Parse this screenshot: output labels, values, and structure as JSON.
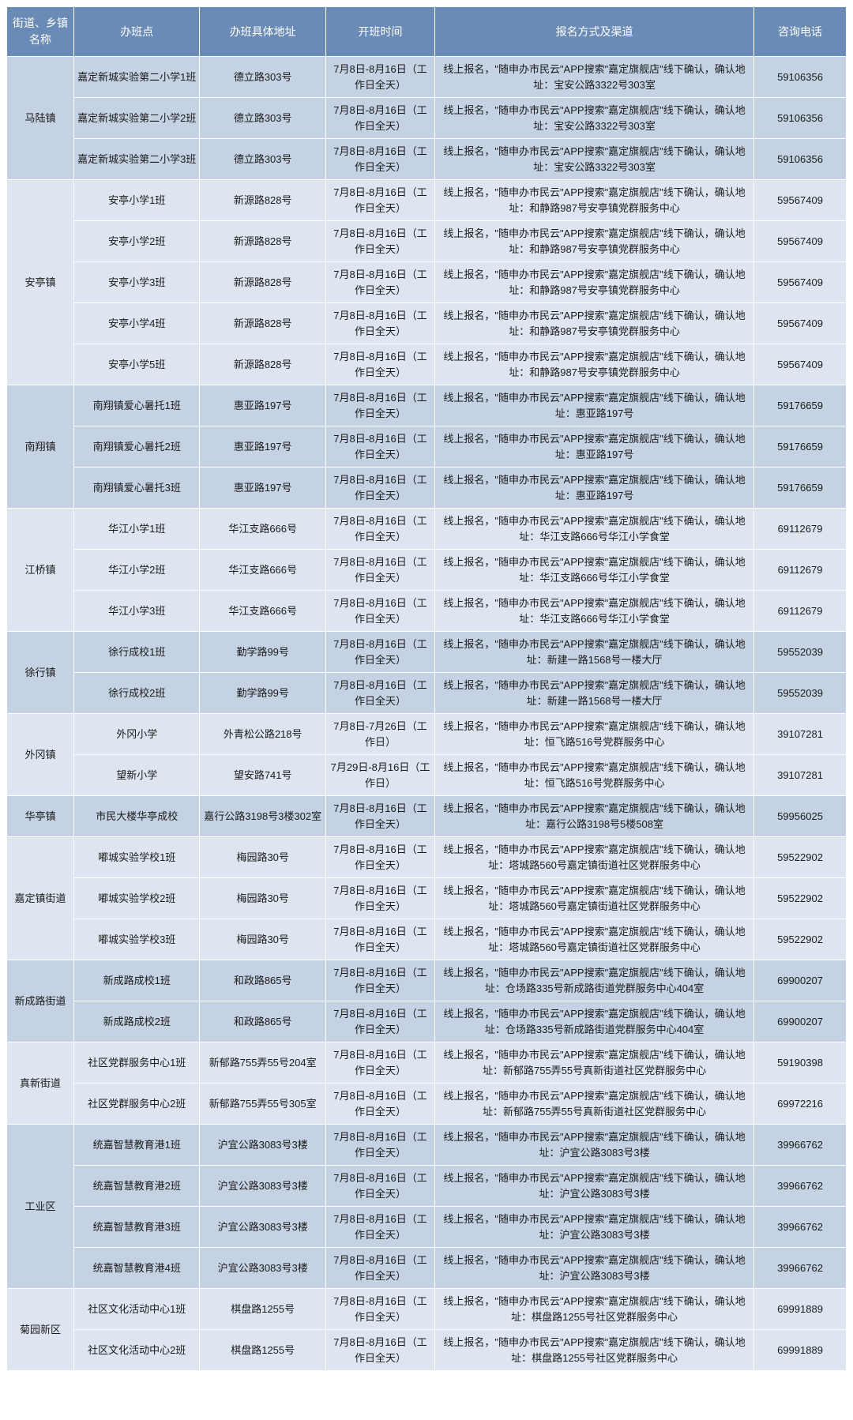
{
  "columns": [
    "街道、乡镇名称",
    "办班点",
    "办班具体地址",
    "开班时间",
    "报名方式及渠道",
    "咨询电话"
  ],
  "col_widths_pct": [
    8,
    15,
    15,
    13,
    38,
    11
  ],
  "header_bg": "#6a8bb5",
  "header_fg": "#ffffff",
  "band_a_bg": "#c4d2e3",
  "band_b_bg": "#dde6f0",
  "border_color": "#ffffff",
  "font_size_cell": 13,
  "font_size_header": 14,
  "groups": [
    {
      "town": "马陆镇",
      "band": "a",
      "rows": [
        {
          "site": "嘉定新城实验第二小学1班",
          "addr": "德立路303号",
          "time": "7月8日-8月16日（工作日全天）",
          "method": "线上报名，\"随申办市民云\"APP搜索\"嘉定旗舰店\"线下确认，确认地址：宝安公路3322号303室",
          "phone": "59106356"
        },
        {
          "site": "嘉定新城实验第二小学2班",
          "addr": "德立路303号",
          "time": "7月8日-8月16日（工作日全天）",
          "method": "线上报名，\"随申办市民云\"APP搜索\"嘉定旗舰店\"线下确认，确认地址：宝安公路3322号303室",
          "phone": "59106356"
        },
        {
          "site": "嘉定新城实验第二小学3班",
          "addr": "德立路303号",
          "time": "7月8日-8月16日（工作日全天）",
          "method": "线上报名，\"随申办市民云\"APP搜索\"嘉定旗舰店\"线下确认，确认地址：宝安公路3322号303室",
          "phone": "59106356"
        }
      ]
    },
    {
      "town": "安亭镇",
      "band": "b",
      "rows": [
        {
          "site": "安亭小学1班",
          "addr": "新源路828号",
          "time": "7月8日-8月16日（工作日全天）",
          "method": "线上报名，\"随申办市民云\"APP搜索\"嘉定旗舰店\"线下确认，确认地址：和静路987号安亭镇党群服务中心",
          "phone": "59567409"
        },
        {
          "site": "安亭小学2班",
          "addr": "新源路828号",
          "time": "7月8日-8月16日（工作日全天）",
          "method": "线上报名，\"随申办市民云\"APP搜索\"嘉定旗舰店\"线下确认，确认地址：和静路987号安亭镇党群服务中心",
          "phone": "59567409"
        },
        {
          "site": "安亭小学3班",
          "addr": "新源路828号",
          "time": "7月8日-8月16日（工作日全天）",
          "method": "线上报名，\"随申办市民云\"APP搜索\"嘉定旗舰店\"线下确认，确认地址：和静路987号安亭镇党群服务中心",
          "phone": "59567409"
        },
        {
          "site": "安亭小学4班",
          "addr": "新源路828号",
          "time": "7月8日-8月16日（工作日全天）",
          "method": "线上报名，\"随申办市民云\"APP搜索\"嘉定旗舰店\"线下确认，确认地址：和静路987号安亭镇党群服务中心",
          "phone": "59567409"
        },
        {
          "site": "安亭小学5班",
          "addr": "新源路828号",
          "time": "7月8日-8月16日（工作日全天）",
          "method": "线上报名，\"随申办市民云\"APP搜索\"嘉定旗舰店\"线下确认，确认地址：和静路987号安亭镇党群服务中心",
          "phone": "59567409"
        }
      ]
    },
    {
      "town": "南翔镇",
      "band": "a",
      "rows": [
        {
          "site": "南翔镇爱心暑托1班",
          "addr": "惠亚路197号",
          "time": "7月8日-8月16日（工作日全天）",
          "method": "线上报名，\"随申办市民云\"APP搜索\"嘉定旗舰店\"线下确认，确认地址：惠亚路197号",
          "phone": "59176659"
        },
        {
          "site": "南翔镇爱心暑托2班",
          "addr": "惠亚路197号",
          "time": "7月8日-8月16日（工作日全天）",
          "method": "线上报名，\"随申办市民云\"APP搜索\"嘉定旗舰店\"线下确认，确认地址：惠亚路197号",
          "phone": "59176659"
        },
        {
          "site": "南翔镇爱心暑托3班",
          "addr": "惠亚路197号",
          "time": "7月8日-8月16日（工作日全天）",
          "method": "线上报名，\"随申办市民云\"APP搜索\"嘉定旗舰店\"线下确认，确认地址：惠亚路197号",
          "phone": "59176659"
        }
      ]
    },
    {
      "town": "江桥镇",
      "band": "b",
      "rows": [
        {
          "site": "华江小学1班",
          "addr": "华江支路666号",
          "time": "7月8日-8月16日（工作日全天）",
          "method": "线上报名，\"随申办市民云\"APP搜索\"嘉定旗舰店\"线下确认，确认地址：华江支路666号华江小学食堂",
          "phone": "69112679"
        },
        {
          "site": "华江小学2班",
          "addr": "华江支路666号",
          "time": "7月8日-8月16日（工作日全天）",
          "method": "线上报名，\"随申办市民云\"APP搜索\"嘉定旗舰店\"线下确认，确认地址：华江支路666号华江小学食堂",
          "phone": "69112679"
        },
        {
          "site": "华江小学3班",
          "addr": "华江支路666号",
          "time": "7月8日-8月16日（工作日全天）",
          "method": "线上报名，\"随申办市民云\"APP搜索\"嘉定旗舰店\"线下确认，确认地址：华江支路666号华江小学食堂",
          "phone": "69112679"
        }
      ]
    },
    {
      "town": "徐行镇",
      "band": "a",
      "rows": [
        {
          "site": "徐行成校1班",
          "addr": "勤学路99号",
          "time": "7月8日-8月16日（工作日全天）",
          "method": "线上报名，\"随申办市民云\"APP搜索\"嘉定旗舰店\"线下确认，确认地址：新建一路1568号一楼大厅",
          "phone": "59552039"
        },
        {
          "site": "徐行成校2班",
          "addr": "勤学路99号",
          "time": "7月8日-8月16日（工作日全天）",
          "method": "线上报名，\"随申办市民云\"APP搜索\"嘉定旗舰店\"线下确认，确认地址：新建一路1568号一楼大厅",
          "phone": "59552039"
        }
      ]
    },
    {
      "town": "外冈镇",
      "band": "b",
      "rows": [
        {
          "site": "外冈小学",
          "addr": "外青松公路218号",
          "time": "7月8日-7月26日（工作日）",
          "method": "线上报名，\"随申办市民云\"APP搜索\"嘉定旗舰店\"线下确认，确认地址：恒飞路516号党群服务中心",
          "phone": "39107281"
        },
        {
          "site": "望新小学",
          "addr": "望安路741号",
          "time": "7月29日-8月16日（工作日）",
          "method": "线上报名，\"随申办市民云\"APP搜索\"嘉定旗舰店\"线下确认，确认地址：恒飞路516号党群服务中心",
          "phone": "39107281"
        }
      ]
    },
    {
      "town": "华亭镇",
      "band": "a",
      "rows": [
        {
          "site": "市民大楼华亭成校",
          "addr": "嘉行公路3198号3楼302室",
          "time": "7月8日-8月16日（工作日全天）",
          "method": "线上报名，\"随申办市民云\"APP搜索\"嘉定旗舰店\"线下确认，确认地址：嘉行公路3198号5楼508室",
          "phone": "59956025"
        }
      ]
    },
    {
      "town": "嘉定镇街道",
      "band": "b",
      "rows": [
        {
          "site": "嘟城实验学校1班",
          "addr": "梅园路30号",
          "time": "7月8日-8月16日（工作日全天）",
          "method": "线上报名，\"随申办市民云\"APP搜索\"嘉定旗舰店\"线下确认，确认地址：塔城路560号嘉定镇街道社区党群服务中心",
          "phone": "59522902"
        },
        {
          "site": "嘟城实验学校2班",
          "addr": "梅园路30号",
          "time": "7月8日-8月16日（工作日全天）",
          "method": "线上报名，\"随申办市民云\"APP搜索\"嘉定旗舰店\"线下确认，确认地址：塔城路560号嘉定镇街道社区党群服务中心",
          "phone": "59522902"
        },
        {
          "site": "嘟城实验学校3班",
          "addr": "梅园路30号",
          "time": "7月8日-8月16日（工作日全天）",
          "method": "线上报名，\"随申办市民云\"APP搜索\"嘉定旗舰店\"线下确认，确认地址：塔城路560号嘉定镇街道社区党群服务中心",
          "phone": "59522902"
        }
      ]
    },
    {
      "town": "新成路街道",
      "band": "a",
      "rows": [
        {
          "site": "新成路成校1班",
          "addr": "和政路865号",
          "time": "7月8日-8月16日（工作日全天）",
          "method": "线上报名，\"随申办市民云\"APP搜索\"嘉定旗舰店\"线下确认，确认地址：仓场路335号新成路街道党群服务中心404室",
          "phone": "69900207"
        },
        {
          "site": "新成路成校2班",
          "addr": "和政路865号",
          "time": "7月8日-8月16日（工作日全天）",
          "method": "线上报名，\"随申办市民云\"APP搜索\"嘉定旗舰店\"线下确认，确认地址：仓场路335号新成路街道党群服务中心404室",
          "phone": "69900207"
        }
      ]
    },
    {
      "town": "真新街道",
      "band": "b",
      "rows": [
        {
          "site": "社区党群服务中心1班",
          "addr": "新郁路755弄55号204室",
          "time": "7月8日-8月16日（工作日全天）",
          "method": "线上报名，\"随申办市民云\"APP搜索\"嘉定旗舰店\"线下确认，确认地址：新郁路755弄55号真新街道社区党群服务中心",
          "phone": "59190398"
        },
        {
          "site": "社区党群服务中心2班",
          "addr": "新郁路755弄55号305室",
          "time": "7月8日-8月16日（工作日全天）",
          "method": "线上报名，\"随申办市民云\"APP搜索\"嘉定旗舰店\"线下确认，确认地址：新郁路755弄55号真新街道社区党群服务中心",
          "phone": "69972216"
        }
      ]
    },
    {
      "town": "工业区",
      "band": "a",
      "rows": [
        {
          "site": "统嘉智慧教育港1班",
          "addr": "沪宜公路3083号3楼",
          "time": "7月8日-8月16日（工作日全天）",
          "method": "线上报名，\"随申办市民云\"APP搜索\"嘉定旗舰店\"线下确认，确认地址：沪宜公路3083号3楼",
          "phone": "39966762"
        },
        {
          "site": "统嘉智慧教育港2班",
          "addr": "沪宜公路3083号3楼",
          "time": "7月8日-8月16日（工作日全天）",
          "method": "线上报名，\"随申办市民云\"APP搜索\"嘉定旗舰店\"线下确认，确认地址：沪宜公路3083号3楼",
          "phone": "39966762"
        },
        {
          "site": "统嘉智慧教育港3班",
          "addr": "沪宜公路3083号3楼",
          "time": "7月8日-8月16日（工作日全天）",
          "method": "线上报名，\"随申办市民云\"APP搜索\"嘉定旗舰店\"线下确认，确认地址：沪宜公路3083号3楼",
          "phone": "39966762"
        },
        {
          "site": "统嘉智慧教育港4班",
          "addr": "沪宜公路3083号3楼",
          "time": "7月8日-8月16日（工作日全天）",
          "method": "线上报名，\"随申办市民云\"APP搜索\"嘉定旗舰店\"线下确认，确认地址：沪宜公路3083号3楼",
          "phone": "39966762"
        }
      ]
    },
    {
      "town": "菊园新区",
      "band": "b",
      "rows": [
        {
          "site": "社区文化活动中心1班",
          "addr": "棋盘路1255号",
          "time": "7月8日-8月16日（工作日全天）",
          "method": "线上报名，\"随申办市民云\"APP搜索\"嘉定旗舰店\"线下确认，确认地址：棋盘路1255号社区党群服务中心",
          "phone": "69991889"
        },
        {
          "site": "社区文化活动中心2班",
          "addr": "棋盘路1255号",
          "time": "7月8日-8月16日（工作日全天）",
          "method": "线上报名，\"随申办市民云\"APP搜索\"嘉定旗舰店\"线下确认，确认地址：棋盘路1255号社区党群服务中心",
          "phone": "69991889"
        }
      ]
    }
  ]
}
